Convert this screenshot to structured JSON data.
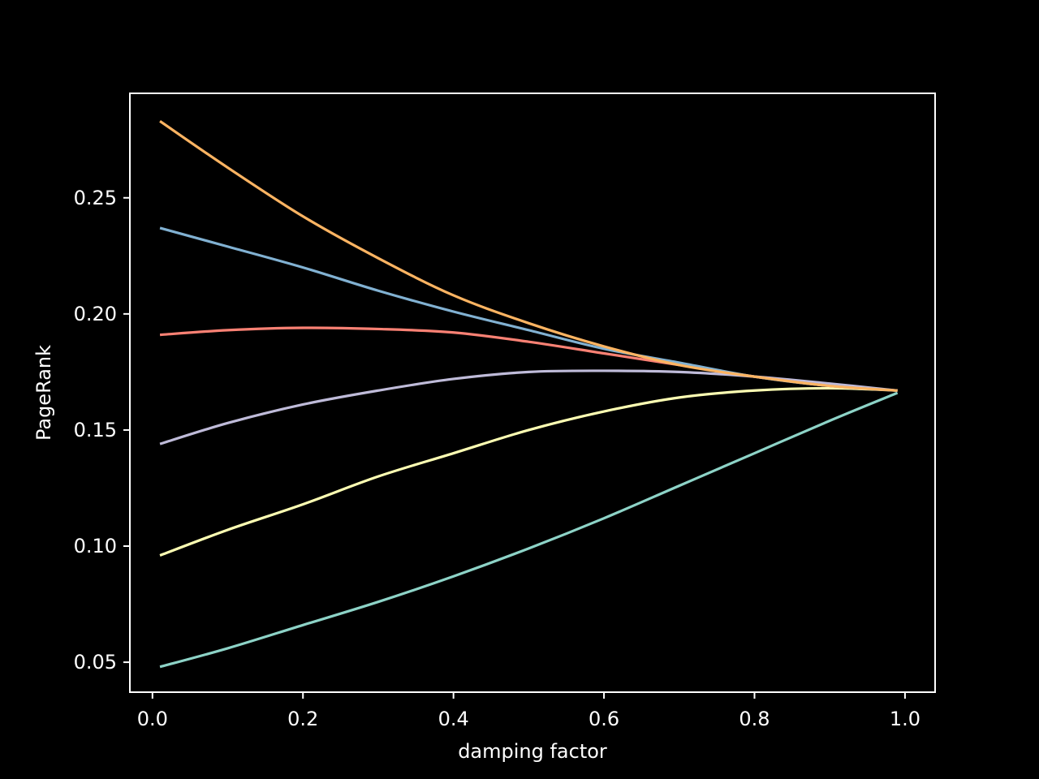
{
  "chart_data": {
    "type": "line",
    "title": "",
    "xlabel": "damping factor",
    "ylabel": "PageRank",
    "xlim": [
      -0.03,
      1.04
    ],
    "ylim": [
      0.0371,
      0.295
    ],
    "xticks": [
      0.0,
      0.2,
      0.4,
      0.6,
      0.8,
      1.0
    ],
    "xtick_labels": [
      "0.0",
      "0.2",
      "0.4",
      "0.6",
      "0.8",
      "1.0"
    ],
    "yticks": [
      0.05,
      0.1,
      0.15,
      0.2,
      0.25
    ],
    "ytick_labels": [
      "0.05",
      "0.10",
      "0.15",
      "0.20",
      "0.25"
    ],
    "grid": false,
    "legend": "none",
    "background": "#000000",
    "axis_color": "#ffffff",
    "x": [
      0.01,
      0.1,
      0.2,
      0.3,
      0.4,
      0.5,
      0.6,
      0.7,
      0.8,
      0.9,
      0.99
    ],
    "series": [
      {
        "color": "#8dd3c7",
        "values": [
          0.048,
          0.056,
          0.066,
          0.076,
          0.087,
          0.099,
          0.112,
          0.126,
          0.14,
          0.154,
          0.166
        ]
      },
      {
        "color": "#feffb3",
        "values": [
          0.096,
          0.107,
          0.118,
          0.13,
          0.14,
          0.15,
          0.158,
          0.164,
          0.167,
          0.168,
          0.167
        ]
      },
      {
        "color": "#bfbbd9",
        "values": [
          0.144,
          0.153,
          0.161,
          0.167,
          0.172,
          0.175,
          0.1755,
          0.175,
          0.173,
          0.17,
          0.167
        ]
      },
      {
        "color": "#fa8174",
        "values": [
          0.191,
          0.193,
          0.194,
          0.1935,
          0.192,
          0.188,
          0.183,
          0.178,
          0.173,
          0.169,
          0.167
        ]
      },
      {
        "color": "#81b1d2",
        "values": [
          0.237,
          0.229,
          0.22,
          0.21,
          0.201,
          0.193,
          0.185,
          0.179,
          0.173,
          0.169,
          0.167
        ]
      },
      {
        "color": "#fdb462",
        "values": [
          0.283,
          0.263,
          0.242,
          0.224,
          0.208,
          0.196,
          0.186,
          0.178,
          0.173,
          0.169,
          0.167
        ]
      }
    ]
  }
}
